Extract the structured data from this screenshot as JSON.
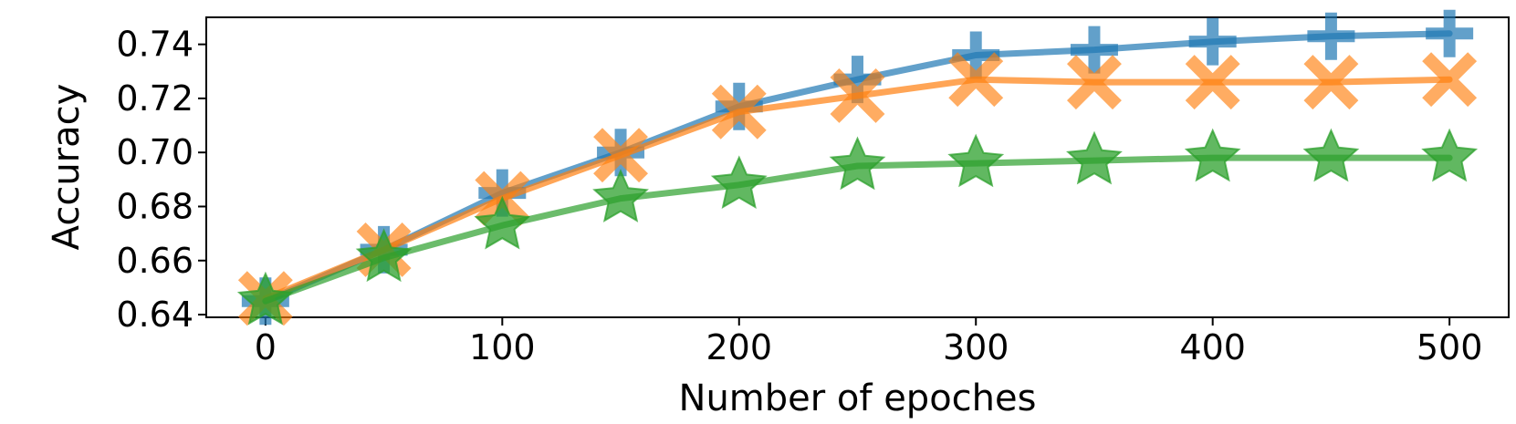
{
  "chart_data": {
    "type": "line",
    "xlabel": "Number of epoches",
    "ylabel": "Accuracy",
    "xlim": [
      -25,
      525
    ],
    "ylim": [
      0.639,
      0.75
    ],
    "x_ticks": [
      0,
      100,
      200,
      300,
      400,
      500
    ],
    "y_ticks": [
      0.64,
      0.66,
      0.68,
      0.7,
      0.72,
      0.74
    ],
    "y_tick_labels": [
      "0.64",
      "0.66",
      "0.68",
      "0.70",
      "0.72",
      "0.74"
    ],
    "grid": false,
    "x": [
      0,
      50,
      100,
      150,
      200,
      250,
      300,
      350,
      400,
      450,
      500
    ],
    "series": [
      {
        "marker": "plus",
        "color": "#1f77b4",
        "values": [
          0.645,
          0.664,
          0.685,
          0.7,
          0.717,
          0.727,
          0.736,
          0.738,
          0.741,
          0.743,
          0.744
        ]
      },
      {
        "marker": "x",
        "color": "#ff7f0e",
        "values": [
          0.646,
          0.664,
          0.683,
          0.699,
          0.715,
          0.721,
          0.727,
          0.726,
          0.726,
          0.726,
          0.727
        ]
      },
      {
        "marker": "star",
        "color": "#2ca02c",
        "values": [
          0.645,
          0.661,
          0.673,
          0.683,
          0.688,
          0.695,
          0.696,
          0.697,
          0.698,
          0.698,
          0.698
        ]
      }
    ]
  }
}
